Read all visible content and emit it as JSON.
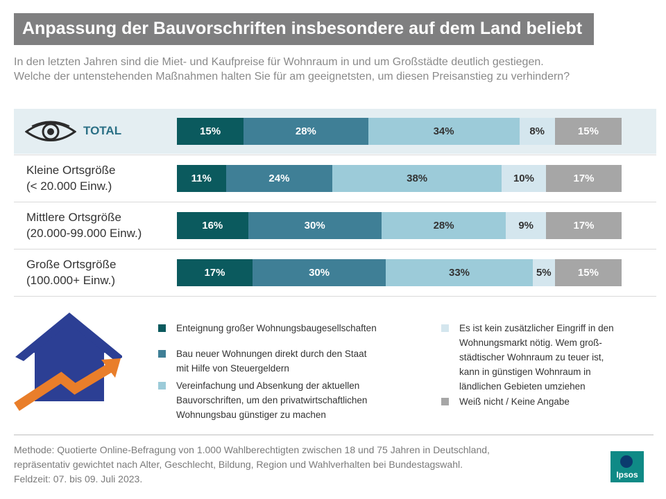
{
  "title": "Anpassung der Bauvorschriften insbesondere auf dem Land beliebt",
  "subtitle": {
    "line1": "In den letzten Jahren sind die Miet- und Kaufpreise für Wohnraum in und um Großstädte deutlich gestiegen.",
    "line2": "Welche der untenstehenden Maßnahmen halten Sie für am geeignetsten, um diesen Preisanstieg zu verhindern?"
  },
  "chart_data": {
    "type": "bar",
    "orientation": "horizontal",
    "stacked": true,
    "unit": "%",
    "categories": [
      [
        "TOTAL"
      ],
      [
        "Kleine Ortsgröße",
        "(< 20.000 Einw.)"
      ],
      [
        "Mittlere Ortsgröße",
        "(20.000-99.000 Einw.)"
      ],
      [
        "Große Ortsgröße",
        "(100.000+ Einw.)"
      ]
    ],
    "series": [
      {
        "name": "Enteignung großer Wohnungsbaugesellschaften",
        "color": "#0b5a5e",
        "label_color": "#ffffff",
        "values": [
          15,
          11,
          16,
          17
        ]
      },
      {
        "name": "Bau neuer Wohnungen direkt durch den Staat mit Hilfe von Steuergeldern",
        "color": "#3f7f96",
        "label_color": "#ffffff",
        "values": [
          28,
          24,
          30,
          30
        ]
      },
      {
        "name": "Vereinfachung und Absenkung der aktuellen Bauvorschriften, um den privatwirtschaftlichen Wohnungsbau günstiger zu machen",
        "color": "#9ccbd9",
        "label_color": "#333333",
        "values": [
          34,
          38,
          28,
          33
        ]
      },
      {
        "name": "Es ist kein zusätzlicher Eingriff in den Wohnungsmarkt nötig. Wem groß-städtischer Wohnraum zu teuer ist, kann in günstigen Wohnraum in ländlichen Gebieten umziehen",
        "color": "#d4e6ee",
        "label_color": "#333333",
        "values": [
          8,
          10,
          9,
          5
        ]
      },
      {
        "name": "Weiß nicht / Keine Angabe",
        "color": "#a6a6a6",
        "label_color": "#ffffff",
        "values": [
          15,
          17,
          17,
          15
        ]
      }
    ]
  },
  "legend": {
    "left": [
      {
        "lines": [
          "Enteignung großer Wohnungsbaugesellschaften"
        ],
        "color": "#0b5a5e"
      },
      {
        "lines": [
          "Bau neuer Wohnungen direkt durch den Staat",
          "mit Hilfe von Steuergeldern"
        ],
        "color": "#3f7f96"
      },
      {
        "lines": [
          "Vereinfachung und Absenkung der aktuellen",
          "Bauvorschriften, um den privatwirtschaftlichen",
          "Wohnungsbau günstiger zu machen"
        ],
        "color": "#9ccbd9"
      }
    ],
    "right": [
      {
        "lines": [
          "Es ist kein zusätzlicher Eingriff in den",
          "Wohnungsmarkt nötig. Wem groß-",
          "städtischer Wohnraum zu teuer ist,",
          "kann in günstigen Wohnraum in",
          "ländlichen Gebieten umziehen"
        ],
        "color": "#d4e6ee"
      },
      {
        "lines": [
          "Weiß nicht / Keine Angabe"
        ],
        "color": "#a6a6a6"
      }
    ]
  },
  "method": {
    "line1": "Methode: Quotierte Online-Befragung von 1.000 Wahlberechtigten zwischen 18 und 75 Jahren in Deutschland,",
    "line2": "repräsentativ gewichtet nach Alter, Geschlecht, Bildung, Region und Wahlverhalten bei Bundestagswahl.",
    "line3": "Feldzeit: 07. bis 09. Juli 2023."
  },
  "logo": {
    "text": "Ipsos"
  },
  "icons": {
    "total": "eye-icon",
    "illustration": "house-arrow-icon"
  },
  "colors": {
    "accent": "#2a6f85",
    "title_bg": "#7f7f80",
    "logo_bg": "#0f8a86"
  }
}
